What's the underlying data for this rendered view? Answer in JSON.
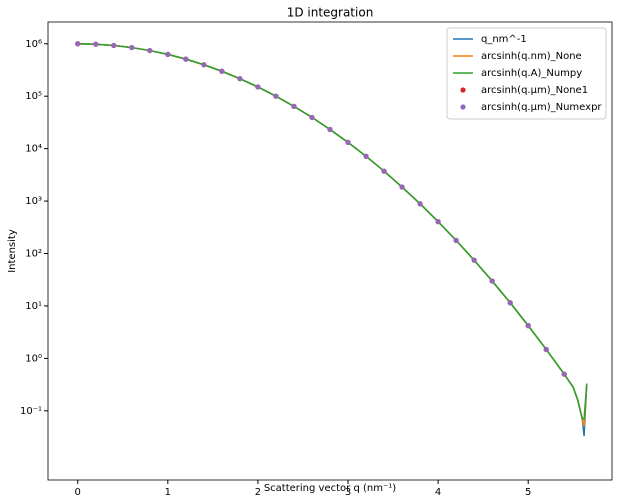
{
  "chart_data": {
    "type": "line",
    "title": "1D integration",
    "x_label": "Scattering vector q (nm⁻¹)",
    "y_label": "Intensity",
    "log_y": true,
    "legend": "upper-right",
    "x": [
      0,
      0.2,
      0.4,
      0.6,
      0.8,
      1.0,
      1.2,
      1.4,
      1.6,
      1.8,
      2.0,
      2.2,
      2.4,
      2.6,
      2.8,
      3.0,
      3.2,
      3.4,
      3.6,
      3.8,
      4.0,
      4.2,
      4.4,
      4.6,
      4.8,
      5.0,
      5.2,
      5.4,
      5.5,
      5.55,
      5.6,
      5.62,
      5.65
    ],
    "series": [
      {
        "name": "q_nm^-1",
        "color": "#1f77b4",
        "style": "line",
        "values": [
          1000000,
          981000,
          929000,
          846000,
          742000,
          627000,
          509000,
          398000,
          299000,
          216000,
          150000,
          100000,
          64000,
          39400,
          23200,
          13150,
          7140,
          3720,
          1850,
          886,
          406,
          178,
          74.6,
          29.9,
          11.5,
          4.22,
          1.48,
          0.5,
          0.28,
          0.16,
          0.07,
          0.033,
          0.33
        ]
      },
      {
        "name": "arcsinh(q.nm)_None",
        "color": "#ff7f0e",
        "style": "line",
        "values": [
          1000000,
          981000,
          929000,
          846000,
          742000,
          627000,
          509000,
          398000,
          299000,
          216000,
          150000,
          100000,
          64000,
          39400,
          23200,
          13150,
          7140,
          3720,
          1850,
          886,
          406,
          178,
          74.6,
          29.9,
          11.5,
          4.22,
          1.48,
          0.5,
          0.28,
          0.16,
          0.07,
          0.05,
          0.33
        ]
      },
      {
        "name": "arcsinh(q.A)_Numpy",
        "color": "#2ca02c",
        "style": "line",
        "values": [
          1000000,
          981000,
          929000,
          846000,
          742000,
          627000,
          509000,
          398000,
          299000,
          216000,
          150000,
          100000,
          64000,
          39400,
          23200,
          13150,
          7140,
          3720,
          1850,
          886,
          406,
          178,
          74.6,
          29.9,
          11.5,
          4.22,
          1.48,
          0.5,
          0.28,
          0.16,
          0.07,
          0.07,
          0.33
        ]
      },
      {
        "name": "arcsinh(q.µm)_None1",
        "color": "#d62728",
        "style": "dots",
        "values": [
          1000000,
          981000,
          929000,
          846000,
          742000,
          627000,
          509000,
          398000,
          299000,
          216000,
          150000,
          100000,
          64000,
          39400,
          23200,
          13150,
          7140,
          3720,
          1850,
          886,
          406,
          178,
          74.6,
          29.9,
          11.5,
          4.22,
          1.48,
          0.5,
          null,
          null,
          null,
          null,
          null
        ]
      },
      {
        "name": "arcsinh(q.µm)_Numexpr",
        "color": "#9467bd",
        "style": "dots",
        "values": [
          1000000,
          981000,
          929000,
          846000,
          742000,
          627000,
          509000,
          398000,
          299000,
          216000,
          150000,
          100000,
          64000,
          39400,
          23200,
          13150,
          7140,
          3720,
          1850,
          886,
          406,
          178,
          74.6,
          29.9,
          11.5,
          4.22,
          1.48,
          0.5,
          null,
          null,
          null,
          null,
          null
        ]
      }
    ],
    "xlim": [
      -0.33,
      5.93
    ],
    "xticks": [
      0,
      1,
      2,
      3,
      4,
      5
    ],
    "ylim": [
      0.0048,
      2600000
    ],
    "yticks": [
      {
        "value": 0.1,
        "label": "10⁻¹"
      },
      {
        "value": 1,
        "label": "10⁰"
      },
      {
        "value": 10,
        "label": "10¹"
      },
      {
        "value": 100,
        "label": "10²"
      },
      {
        "value": 1000,
        "label": "10³"
      },
      {
        "value": 10000,
        "label": "10⁴"
      },
      {
        "value": 100000,
        "label": "10⁵"
      },
      {
        "value": 1000000,
        "label": "10⁶"
      }
    ]
  }
}
